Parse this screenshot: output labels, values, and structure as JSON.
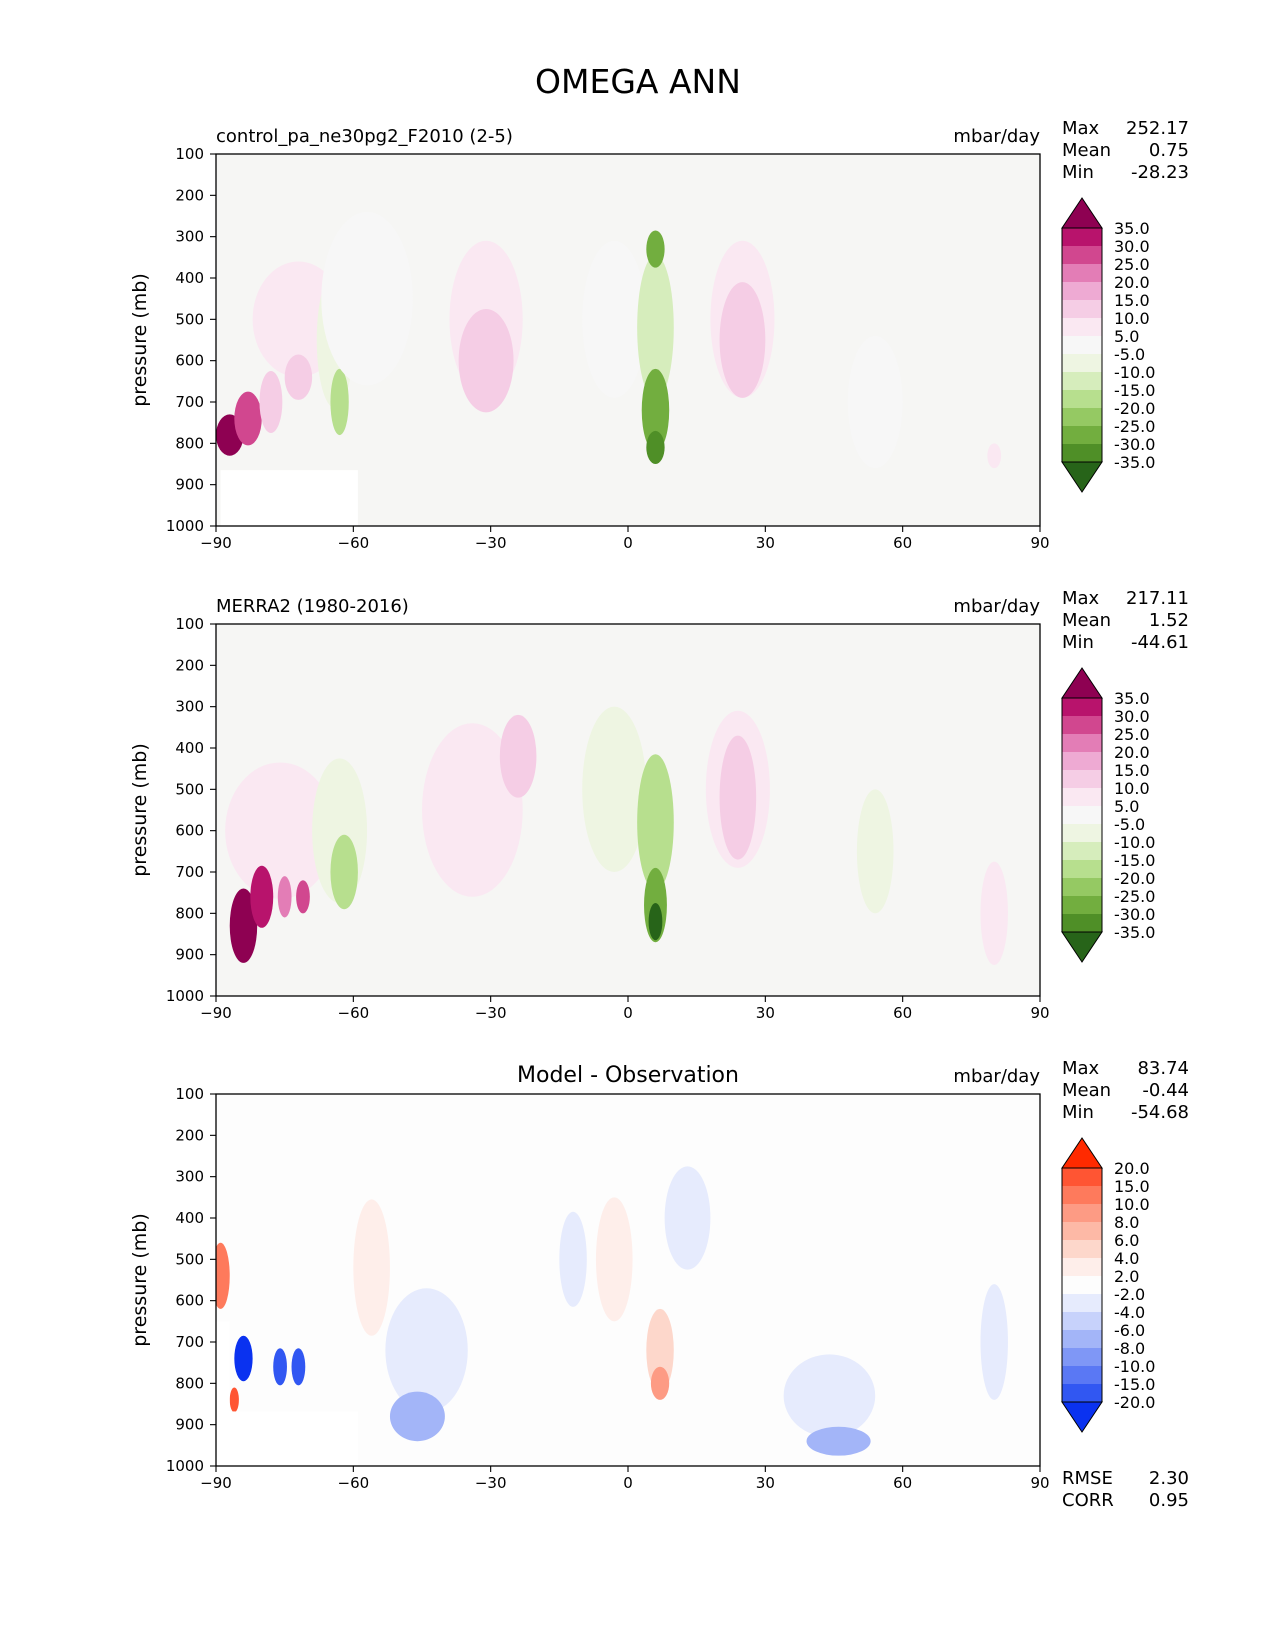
{
  "suptitle": "OMEGA ANN",
  "panels": [
    {
      "left_title": "control_pa_ne30pg2_F2010 (2-5)",
      "center_title": "",
      "units": "mbar/day",
      "stats": [
        {
          "label": "Max",
          "value": "252.17"
        },
        {
          "label": "Mean",
          "value": "0.75"
        },
        {
          "label": "Min",
          "value": "-28.23"
        }
      ],
      "colorbar": {
        "labels": [
          "35.0",
          "30.0",
          "25.0",
          "20.0",
          "15.0",
          "10.0",
          "5.0",
          "-5.0",
          "-10.0",
          "-15.0",
          "-20.0",
          "-25.0",
          "-30.0",
          "-35.0"
        ],
        "colors": [
          "#8e0152",
          "#b8136c",
          "#d1478f",
          "#e37db6",
          "#eeaad3",
          "#f5cde5",
          "#fae8f2",
          "#f7f7f7",
          "#eef5e2",
          "#d6edbc",
          "#b7df8e",
          "#95c963",
          "#72ae3f",
          "#4f8f27",
          "#276419"
        ]
      },
      "extra_stats": [],
      "base": "#f6f6f4"
    },
    {
      "left_title": "MERRA2 (1980-2016)",
      "center_title": "",
      "units": "mbar/day",
      "stats": [
        {
          "label": "Max",
          "value": "217.11"
        },
        {
          "label": "Mean",
          "value": "1.52"
        },
        {
          "label": "Min",
          "value": "-44.61"
        }
      ],
      "colorbar": {
        "labels": [
          "35.0",
          "30.0",
          "25.0",
          "20.0",
          "15.0",
          "10.0",
          "5.0",
          "-5.0",
          "-10.0",
          "-15.0",
          "-20.0",
          "-25.0",
          "-30.0",
          "-35.0"
        ],
        "colors": [
          "#8e0152",
          "#b8136c",
          "#d1478f",
          "#e37db6",
          "#eeaad3",
          "#f5cde5",
          "#fae8f2",
          "#f7f7f7",
          "#eef5e2",
          "#d6edbc",
          "#b7df8e",
          "#95c963",
          "#72ae3f",
          "#4f8f27",
          "#276419"
        ]
      },
      "extra_stats": [],
      "base": "#f6f6f4"
    },
    {
      "left_title": "",
      "center_title": "Model - Observation",
      "units": "mbar/day",
      "stats": [
        {
          "label": "Max",
          "value": "83.74"
        },
        {
          "label": "Mean",
          "value": "-0.44"
        },
        {
          "label": "Min",
          "value": "-54.68"
        }
      ],
      "colorbar": {
        "labels": [
          "20.0",
          "15.0",
          "10.0",
          "8.0",
          "6.0",
          "4.0",
          "2.0",
          "-2.0",
          "-4.0",
          "-6.0",
          "-8.0",
          "-10.0",
          "-15.0",
          "-20.0"
        ],
        "colors": [
          "#ff2a00",
          "#ff5533",
          "#fe7a5c",
          "#fd9b84",
          "#fdb9a6",
          "#fdd7cb",
          "#feeeea",
          "#fdfdfd",
          "#e6ebfd",
          "#c7d2fb",
          "#a3b5f8",
          "#7f97f6",
          "#5a78f4",
          "#3157f2",
          "#0a32f0"
        ]
      },
      "extra_stats": [
        {
          "label": "RMSE",
          "value": "2.30"
        },
        {
          "label": "CORR",
          "value": "0.95"
        }
      ],
      "base": "#fdfdfd"
    }
  ],
  "chart_data": [
    {
      "type": "filled_contour",
      "title": "control_pa_ne30pg2_F2010 (2-5)",
      "xlabel": "",
      "ylabel": "pressure (mb)",
      "xlim": [
        -90,
        90
      ],
      "ylim": [
        1000,
        100
      ],
      "xticks": [
        -90,
        -60,
        -30,
        0,
        30,
        60,
        90
      ],
      "yticks": [
        100,
        200,
        300,
        400,
        500,
        600,
        700,
        800,
        900,
        1000
      ],
      "xtick_labels": [
        "−90",
        "−60",
        "−30",
        "0",
        "30",
        "60",
        "90"
      ],
      "ytick_labels": [
        "100",
        "200",
        "300",
        "400",
        "500",
        "600",
        "700",
        "800",
        "900",
        "1000"
      ],
      "ylabel_text": "pressure (mb)",
      "features": [
        {
          "lat": -72,
          "p": 500,
          "lat_w": 10,
          "p_h": 280,
          "value": 8
        },
        {
          "lat": -87,
          "p": 780,
          "lat_w": 3,
          "p_h": 100,
          "value": 60
        },
        {
          "lat": -83,
          "p": 740,
          "lat_w": 3,
          "p_h": 130,
          "value": 25
        },
        {
          "lat": -78,
          "p": 700,
          "lat_w": 2.5,
          "p_h": 150,
          "value": 14
        },
        {
          "lat": -72,
          "p": 640,
          "lat_w": 3,
          "p_h": 110,
          "value": 12
        },
        {
          "lat": -64,
          "p": 550,
          "lat_w": 4,
          "p_h": 330,
          "value": -8
        },
        {
          "lat": -63,
          "p": 700,
          "lat_w": 2,
          "p_h": 160,
          "value": -18
        },
        {
          "lat": -57,
          "p": 450,
          "lat_w": 10,
          "p_h": 420,
          "value": -4
        },
        {
          "lat": -31,
          "p": 500,
          "lat_w": 8,
          "p_h": 380,
          "value": 7
        },
        {
          "lat": -31,
          "p": 600,
          "lat_w": 6,
          "p_h": 250,
          "value": 12
        },
        {
          "lat": -3,
          "p": 500,
          "lat_w": 7,
          "p_h": 380,
          "value": -5
        },
        {
          "lat": 6,
          "p": 520,
          "lat_w": 4,
          "p_h": 350,
          "value": -14
        },
        {
          "lat": 6,
          "p": 720,
          "lat_w": 3,
          "p_h": 200,
          "value": -26
        },
        {
          "lat": 6,
          "p": 330,
          "lat_w": 2,
          "p_h": 90,
          "value": -26
        },
        {
          "lat": 6,
          "p": 810,
          "lat_w": 2,
          "p_h": 80,
          "value": -34
        },
        {
          "lat": 25,
          "p": 500,
          "lat_w": 7,
          "p_h": 380,
          "value": 7
        },
        {
          "lat": 25,
          "p": 550,
          "lat_w": 5,
          "p_h": 280,
          "value": 12
        },
        {
          "lat": 54,
          "p": 700,
          "lat_w": 6,
          "p_h": 320,
          "value": -5
        },
        {
          "lat": 80,
          "p": 830,
          "lat_w": 1.5,
          "p_h": 60,
          "value": 7
        }
      ],
      "missing_regions": [
        {
          "lat_min": -89,
          "lat_max": -59,
          "p_min": 865,
          "p_max": 1000
        }
      ],
      "colorbar_levels": [
        35,
        30,
        25,
        20,
        15,
        10,
        5,
        -5,
        -10,
        -15,
        -20,
        -25,
        -30,
        -35
      ],
      "units": "mbar/day"
    },
    {
      "type": "filled_contour",
      "title": "MERRA2 (1980-2016)",
      "xlabel": "",
      "ylabel": "pressure (mb)",
      "xlim": [
        -90,
        90
      ],
      "ylim": [
        1000,
        100
      ],
      "xticks": [
        -90,
        -60,
        -30,
        0,
        30,
        60,
        90
      ],
      "yticks": [
        100,
        200,
        300,
        400,
        500,
        600,
        700,
        800,
        900,
        1000
      ],
      "xtick_labels": [
        "−90",
        "−60",
        "−30",
        "0",
        "30",
        "60",
        "90"
      ],
      "ytick_labels": [
        "100",
        "200",
        "300",
        "400",
        "500",
        "600",
        "700",
        "800",
        "900",
        "1000"
      ],
      "ylabel_text": "pressure (mb)",
      "features": [
        {
          "lat": -76,
          "p": 600,
          "lat_w": 12,
          "p_h": 330,
          "value": 7
        },
        {
          "lat": -84,
          "p": 830,
          "lat_w": 3,
          "p_h": 180,
          "value": 55
        },
        {
          "lat": -80,
          "p": 760,
          "lat_w": 2.5,
          "p_h": 150,
          "value": 30
        },
        {
          "lat": -75,
          "p": 760,
          "lat_w": 1.5,
          "p_h": 100,
          "value": 22
        },
        {
          "lat": -71,
          "p": 760,
          "lat_w": 1.5,
          "p_h": 80,
          "value": 28
        },
        {
          "lat": -63,
          "p": 600,
          "lat_w": 6,
          "p_h": 350,
          "value": -9
        },
        {
          "lat": -62,
          "p": 700,
          "lat_w": 3,
          "p_h": 180,
          "value": -18
        },
        {
          "lat": -34,
          "p": 550,
          "lat_w": 11,
          "p_h": 420,
          "value": 7
        },
        {
          "lat": -24,
          "p": 420,
          "lat_w": 4,
          "p_h": 200,
          "value": 11
        },
        {
          "lat": -3,
          "p": 500,
          "lat_w": 7,
          "p_h": 400,
          "value": -7
        },
        {
          "lat": 6,
          "p": 580,
          "lat_w": 4,
          "p_h": 330,
          "value": -16
        },
        {
          "lat": 6,
          "p": 780,
          "lat_w": 2.5,
          "p_h": 180,
          "value": -30
        },
        {
          "lat": 6,
          "p": 820,
          "lat_w": 1.5,
          "p_h": 90,
          "value": -36
        },
        {
          "lat": 24,
          "p": 500,
          "lat_w": 7,
          "p_h": 380,
          "value": 7
        },
        {
          "lat": 24,
          "p": 520,
          "lat_w": 4,
          "p_h": 300,
          "value": 12
        },
        {
          "lat": 54,
          "p": 650,
          "lat_w": 4,
          "p_h": 300,
          "value": -7
        },
        {
          "lat": 80,
          "p": 800,
          "lat_w": 3,
          "p_h": 250,
          "value": 6
        }
      ],
      "missing_regions": [],
      "colorbar_levels": [
        35,
        30,
        25,
        20,
        15,
        10,
        5,
        -5,
        -10,
        -15,
        -20,
        -25,
        -30,
        -35
      ],
      "units": "mbar/day"
    },
    {
      "type": "filled_contour",
      "title": "Model - Observation",
      "xlabel": "",
      "ylabel": "pressure (mb)",
      "xlim": [
        -90,
        90
      ],
      "ylim": [
        1000,
        100
      ],
      "xticks": [
        -90,
        -60,
        -30,
        0,
        30,
        60,
        90
      ],
      "yticks": [
        100,
        200,
        300,
        400,
        500,
        600,
        700,
        800,
        900,
        1000
      ],
      "xtick_labels": [
        "−90",
        "−60",
        "−30",
        "0",
        "30",
        "60",
        "90"
      ],
      "ytick_labels": [
        "100",
        "200",
        "300",
        "400",
        "500",
        "600",
        "700",
        "800",
        "900",
        "1000"
      ],
      "ylabel_text": "pressure (mb)",
      "features": [
        {
          "lat": -89,
          "p": 540,
          "lat_w": 2,
          "p_h": 160,
          "value": 14
        },
        {
          "lat": -84,
          "p": 740,
          "lat_w": 2,
          "p_h": 110,
          "value": -22
        },
        {
          "lat": -76,
          "p": 760,
          "lat_w": 1.5,
          "p_h": 90,
          "value": -18
        },
        {
          "lat": -72,
          "p": 760,
          "lat_w": 1.5,
          "p_h": 90,
          "value": -16
        },
        {
          "lat": -86,
          "p": 840,
          "lat_w": 1,
          "p_h": 60,
          "value": 16
        },
        {
          "lat": -56,
          "p": 520,
          "lat_w": 4,
          "p_h": 330,
          "value": 3
        },
        {
          "lat": -44,
          "p": 720,
          "lat_w": 9,
          "p_h": 300,
          "value": -4
        },
        {
          "lat": -46,
          "p": 880,
          "lat_w": 6,
          "p_h": 120,
          "value": -7
        },
        {
          "lat": -12,
          "p": 500,
          "lat_w": 3,
          "p_h": 230,
          "value": -2.5
        },
        {
          "lat": -3,
          "p": 500,
          "lat_w": 4,
          "p_h": 300,
          "value": 3
        },
        {
          "lat": 7,
          "p": 720,
          "lat_w": 3,
          "p_h": 200,
          "value": 5
        },
        {
          "lat": 7,
          "p": 800,
          "lat_w": 2,
          "p_h": 80,
          "value": 9
        },
        {
          "lat": 13,
          "p": 400,
          "lat_w": 5,
          "p_h": 250,
          "value": -3
        },
        {
          "lat": 44,
          "p": 830,
          "lat_w": 10,
          "p_h": 200,
          "value": -4
        },
        {
          "lat": 46,
          "p": 940,
          "lat_w": 7,
          "p_h": 70,
          "value": -7
        },
        {
          "lat": 80,
          "p": 700,
          "lat_w": 3,
          "p_h": 280,
          "value": -3
        }
      ],
      "missing_regions": [
        {
          "lat_min": -90,
          "lat_max": -87,
          "p_min": 650,
          "p_max": 1000
        },
        {
          "lat_min": -87,
          "lat_max": -59,
          "p_min": 868,
          "p_max": 1000
        }
      ],
      "colorbar_levels": [
        20,
        15,
        10,
        8,
        6,
        4,
        2,
        -2,
        -4,
        -6,
        -8,
        -10,
        -15,
        -20
      ],
      "units": "mbar/day"
    }
  ]
}
